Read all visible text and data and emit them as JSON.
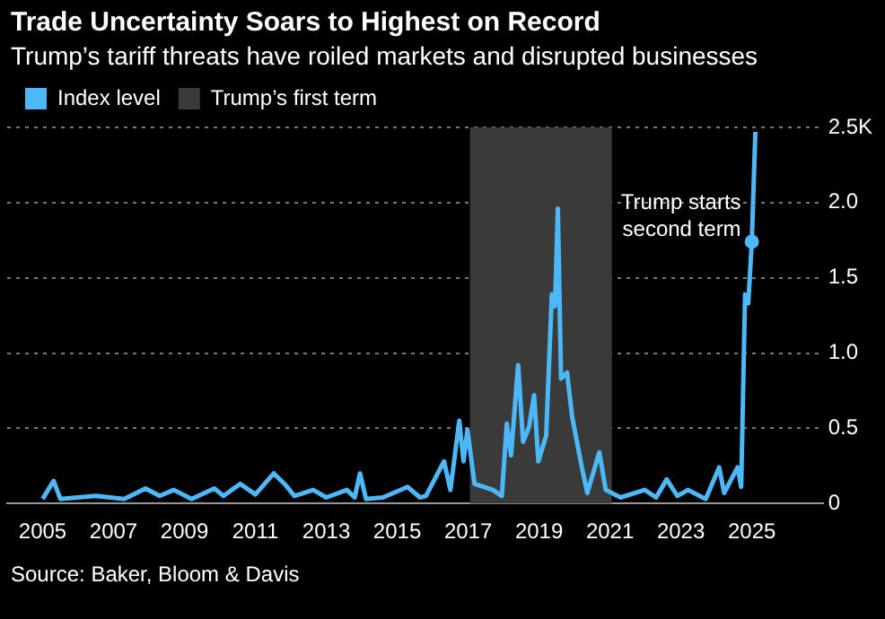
{
  "chart_data": {
    "type": "line",
    "title": "Trade Uncertainty Soars to Highest on Record",
    "subtitle": "Trump’s tariff threats have roiled markets and disrupted businesses",
    "series": [
      {
        "name": "Index level",
        "color": "#4cb8f7",
        "x": [
          2005.0,
          2005.31,
          2005.5,
          2006.5,
          2007.3,
          2007.9,
          2008.3,
          2008.7,
          2009.2,
          2009.84,
          2010.1,
          2010.57,
          2011.0,
          2011.52,
          2011.86,
          2012.1,
          2012.63,
          2013.0,
          2013.58,
          2013.8,
          2013.95,
          2014.12,
          2014.6,
          2015.29,
          2015.64,
          2015.81,
          2016.32,
          2016.5,
          2016.75,
          2016.87,
          2016.98,
          2017.18,
          2017.7,
          2017.95,
          2018.09,
          2018.21,
          2018.41,
          2018.55,
          2018.72,
          2018.86,
          2018.98,
          2019.2,
          2019.36,
          2019.45,
          2019.53,
          2019.62,
          2019.79,
          2019.93,
          2020.19,
          2020.36,
          2020.7,
          2020.88,
          2021.3,
          2021.98,
          2022.3,
          2022.6,
          2022.9,
          2023.2,
          2023.7,
          2024.08,
          2024.22,
          2024.6,
          2024.7,
          2024.81,
          2024.9,
          2025.0,
          2025.1
        ],
        "values": [
          0.03,
          0.15,
          0.03,
          0.05,
          0.03,
          0.1,
          0.05,
          0.09,
          0.03,
          0.1,
          0.05,
          0.13,
          0.06,
          0.2,
          0.12,
          0.05,
          0.09,
          0.04,
          0.09,
          0.04,
          0.2,
          0.03,
          0.04,
          0.11,
          0.04,
          0.05,
          0.28,
          0.09,
          0.55,
          0.28,
          0.49,
          0.13,
          0.09,
          0.05,
          0.53,
          0.32,
          0.92,
          0.41,
          0.51,
          0.72,
          0.28,
          0.45,
          1.39,
          1.31,
          1.96,
          0.83,
          0.87,
          0.58,
          0.26,
          0.07,
          0.34,
          0.09,
          0.04,
          0.09,
          0.04,
          0.16,
          0.05,
          0.09,
          0.03,
          0.24,
          0.07,
          0.24,
          0.11,
          1.39,
          1.33,
          1.74,
          2.47
        ]
      }
    ],
    "bands": [
      {
        "axis": "x",
        "from": 2017.05,
        "to": 2021.05,
        "label": "Trump’s first term",
        "color": "#3a3a3a"
      }
    ],
    "annotations": [
      {
        "text": "Trump starts second term",
        "x": 2025.0,
        "y": 1.74
      },
      "Source: Baker, Bloom & Davis"
    ],
    "xlim": [
      2004.0,
      2027.0
    ],
    "xticks": [
      2005,
      2007,
      2009,
      2011,
      2013,
      2015,
      2017,
      2019,
      2021,
      2023,
      2025
    ],
    "ylim": [
      0,
      2.5
    ],
    "yticks": [
      0,
      0.5,
      {
        "value": 1,
        "label": "1.0"
      },
      1.5,
      {
        "value": 2,
        "label": "2.0"
      },
      {
        "value": 2.5,
        "label": "2.5K"
      }
    ],
    "grid": "y",
    "legend": "top left",
    "marker": "none",
    "line_style": "solid"
  }
}
